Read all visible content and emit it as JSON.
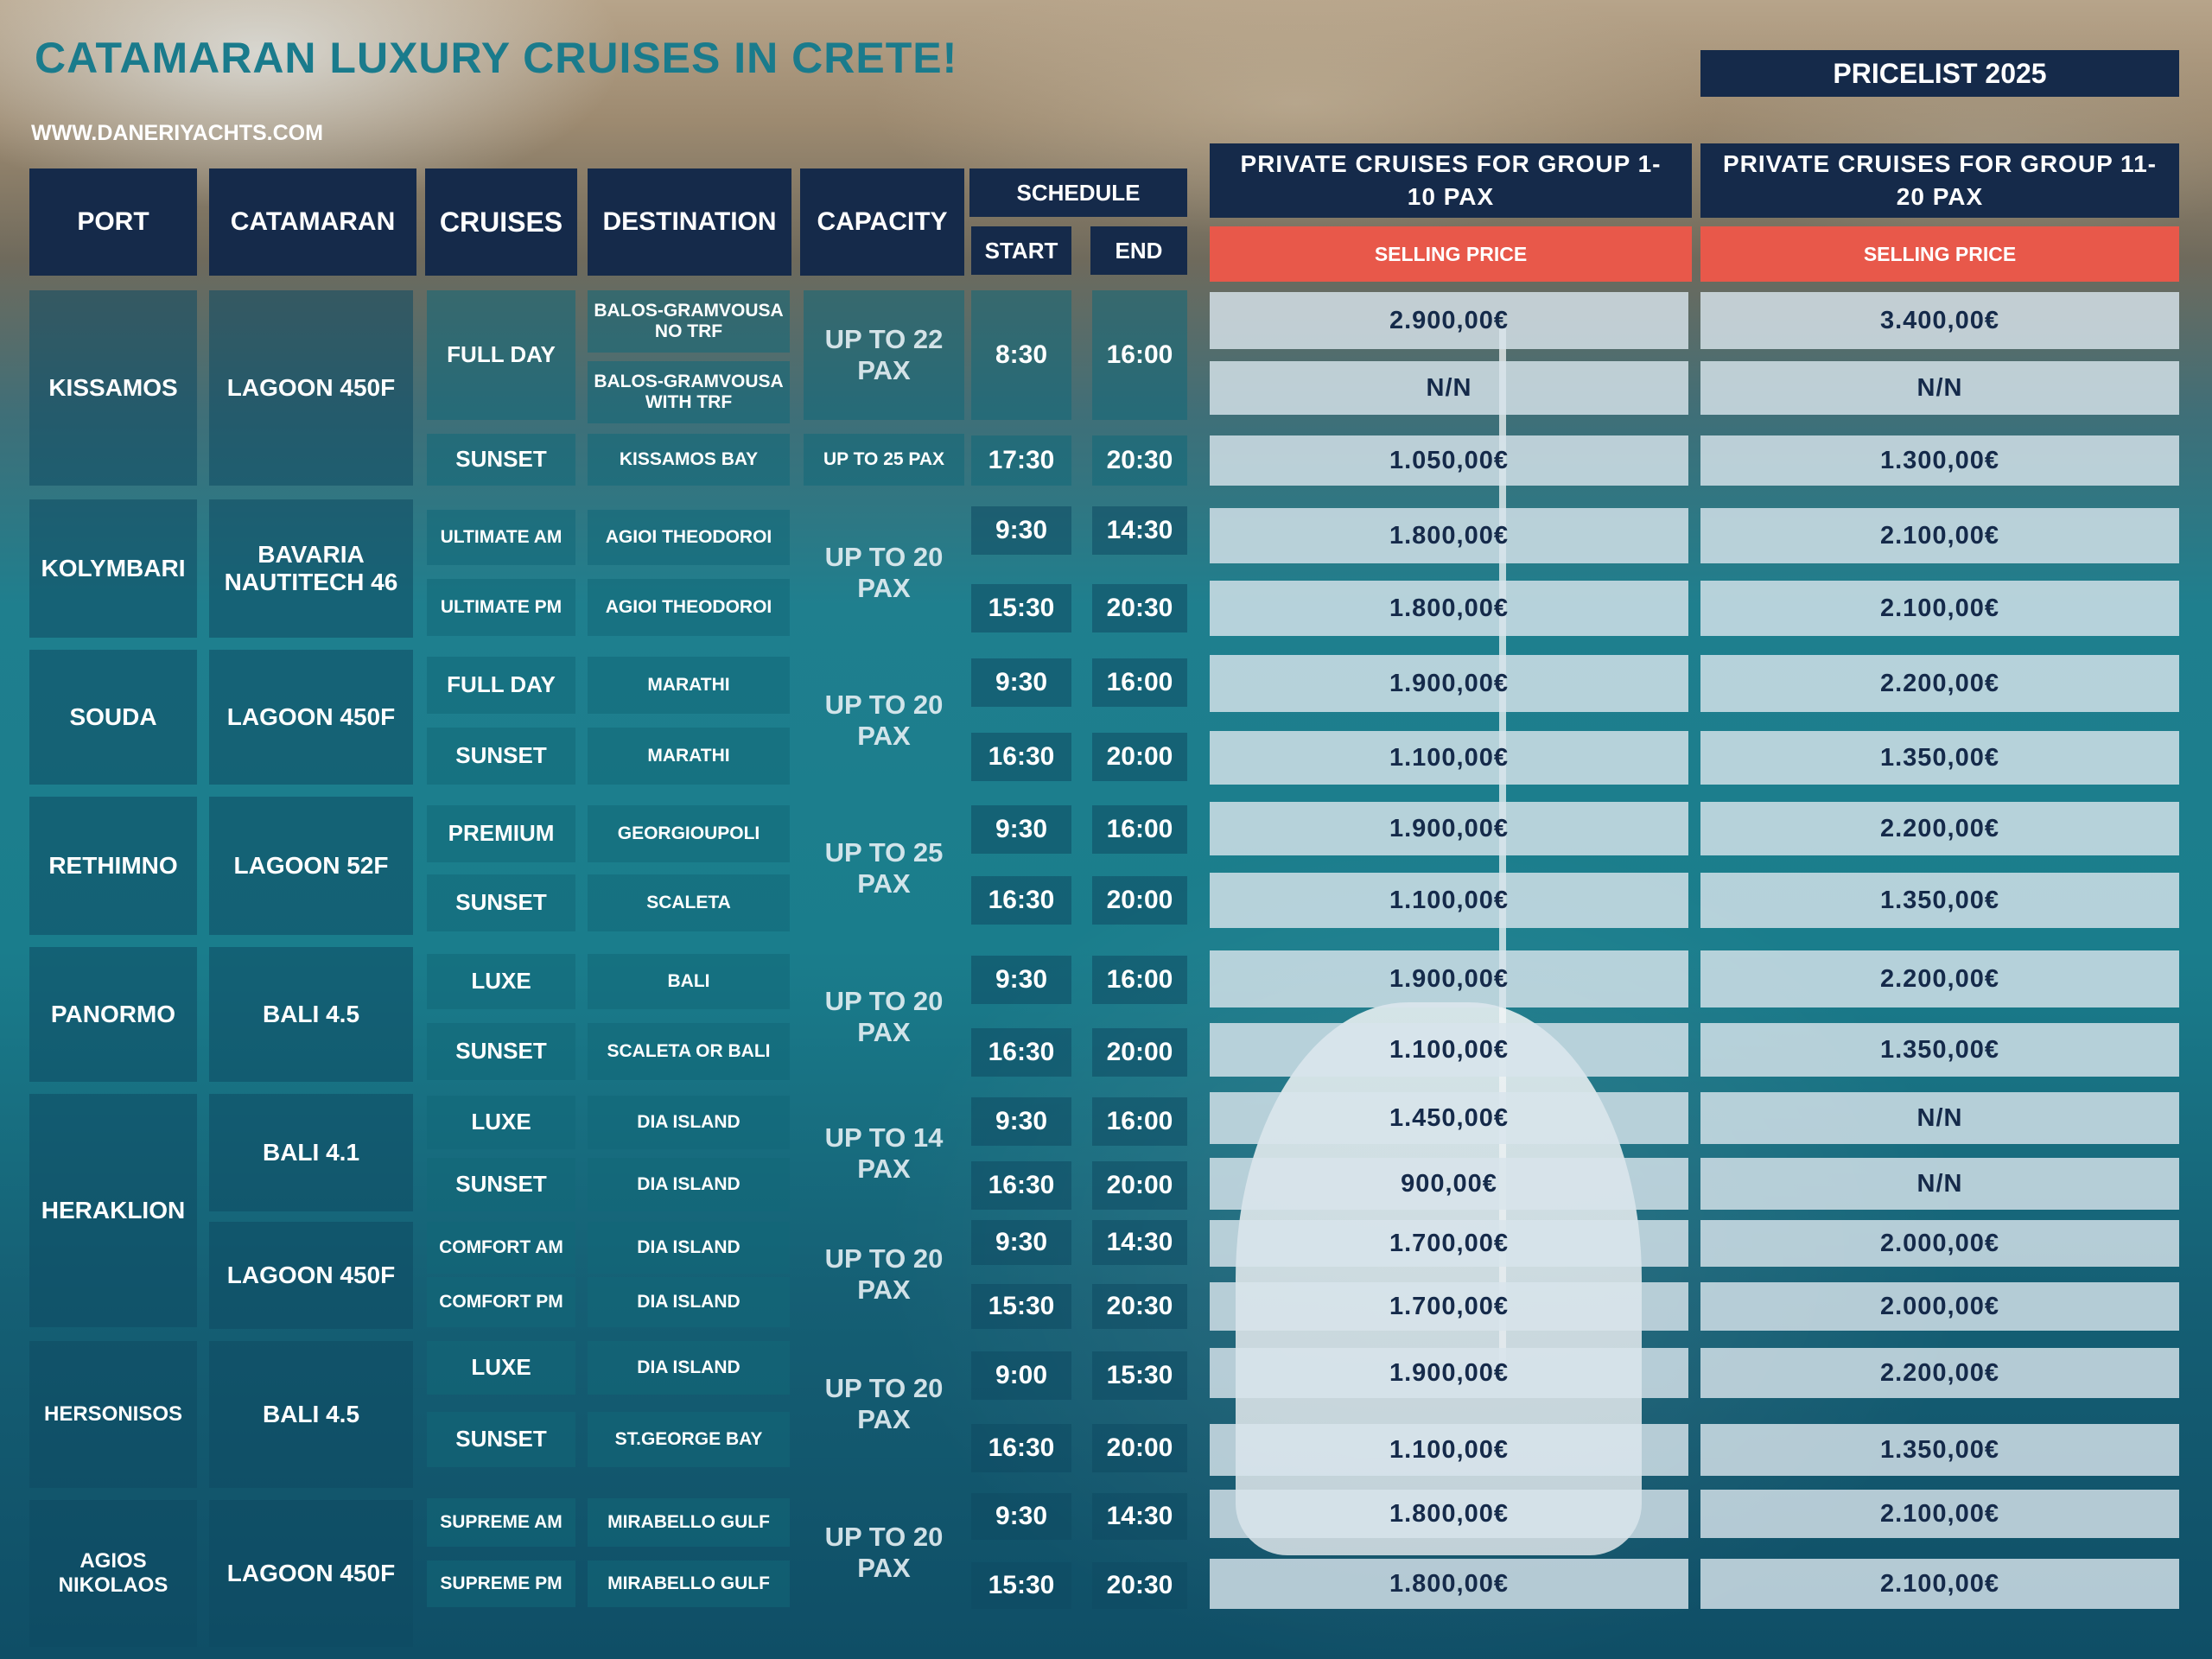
{
  "header": {
    "title": "CATAMARAN LUXURY  CRUISES IN CRETE!",
    "website": "WWW.DANERIYACHTS.COM",
    "pricelist": "PRICELIST 2025"
  },
  "columns": {
    "port": "PORT",
    "catamaran": "CATAMARAN",
    "cruises": "CRUISES",
    "destination": "DESTINATION",
    "capacity": "CAPACITY",
    "schedule": "SCHEDULE",
    "start": "START",
    "end": "END",
    "group1": "PRIVATE CRUISES FOR GROUP 1-10 PAX",
    "group2": "PRIVATE CRUISES FOR GROUP 11-20 PAX",
    "selling1": "SELLING PRICE",
    "selling2": "SELLING PRICE"
  },
  "colors": {
    "navy": "#152a4a",
    "accent_red": "#e8584a",
    "title_teal": "#1a7b8c"
  },
  "table": {
    "ports": [
      "KISSAMOS",
      "KOLYMBARI",
      "SOUDA",
      "RETHIMNO",
      "PANORMO",
      "HERAKLION",
      "HERSONISOS",
      "AGIOS NIKOLAOS"
    ],
    "catamarans": [
      "LAGOON 450F",
      "BAVARIA NAUTITECH 46",
      "LAGOON 450F",
      "LAGOON 52F",
      "BALI 4.5",
      "BALI  4.1",
      "LAGOON 450F",
      "BALI  4.5",
      "LAGOON 450F"
    ],
    "capacities": [
      "UP TO 22 PAX",
      "UP TO 25 PAX",
      "UP TO 20 PAX",
      "UP TO 20 PAX",
      "UP TO 25 PAX",
      "UP TO 20 PAX",
      "UP TO 14 PAX",
      "UP TO 20 PAX",
      "UP TO 20 PAX",
      "UP TO 20 PAX"
    ],
    "rows": [
      {
        "cruise": "FULL DAY",
        "destination": "BALOS-GRAMVOUSA NO TRF",
        "start": "8:30",
        "end": "16:00",
        "price1": "2.900,00€",
        "price2": "3.400,00€"
      },
      {
        "cruise": "",
        "destination": "BALOS-GRAMVOUSA WITH TRF",
        "start": "",
        "end": "",
        "price1": "N/N",
        "price2": "N/N"
      },
      {
        "cruise": "SUNSET",
        "destination": "KISSAMOS BAY",
        "start": "17:30",
        "end": "20:30",
        "price1": "1.050,00€",
        "price2": "1.300,00€"
      },
      {
        "cruise": "ULTIMATE AM",
        "destination": "AGIOI THEODOROI",
        "start": "9:30",
        "end": "14:30",
        "price1": "1.800,00€",
        "price2": "2.100,00€"
      },
      {
        "cruise": "ULTIMATE PM",
        "destination": "AGIOI THEODOROI",
        "start": "15:30",
        "end": "20:30",
        "price1": "1.800,00€",
        "price2": "2.100,00€"
      },
      {
        "cruise": "FULL DAY",
        "destination": "MARATHI",
        "start": "9:30",
        "end": "16:00",
        "price1": "1.900,00€",
        "price2": "2.200,00€"
      },
      {
        "cruise": "SUNSET",
        "destination": "MARATHI",
        "start": "16:30",
        "end": "20:00",
        "price1": "1.100,00€",
        "price2": "1.350,00€"
      },
      {
        "cruise": "PREMIUM",
        "destination": "GEORGIOUPOLI",
        "start": "9:30",
        "end": "16:00",
        "price1": "1.900,00€",
        "price2": "2.200,00€"
      },
      {
        "cruise": "SUNSET",
        "destination": "SCALETA",
        "start": "16:30",
        "end": "20:00",
        "price1": "1.100,00€",
        "price2": "1.350,00€"
      },
      {
        "cruise": "LUXE",
        "destination": "BALI",
        "start": "9:30",
        "end": "16:00",
        "price1": "1.900,00€",
        "price2": "2.200,00€"
      },
      {
        "cruise": "SUNSET",
        "destination": "SCALETA OR BALI",
        "start": "16:30",
        "end": "20:00",
        "price1": "1.100,00€",
        "price2": "1.350,00€"
      },
      {
        "cruise": "LUXE",
        "destination": "DIA ISLAND",
        "start": "9:30",
        "end": "16:00",
        "price1": "1.450,00€",
        "price2": "N/N"
      },
      {
        "cruise": "SUNSET",
        "destination": "DIA ISLAND",
        "start": "16:30",
        "end": "20:00",
        "price1": "900,00€",
        "price2": "N/N"
      },
      {
        "cruise": "COMFORT AM",
        "destination": "DIA ISLAND",
        "start": "9:30",
        "end": "14:30",
        "price1": "1.700,00€",
        "price2": "2.000,00€"
      },
      {
        "cruise": "COMFORT PM",
        "destination": "DIA ISLAND",
        "start": "15:30",
        "end": "20:30",
        "price1": "1.700,00€",
        "price2": "2.000,00€"
      },
      {
        "cruise": "LUXE",
        "destination": "DIA ISLAND",
        "start": "9:00",
        "end": "15:30",
        "price1": "1.900,00€",
        "price2": "2.200,00€"
      },
      {
        "cruise": "SUNSET",
        "destination": "ST.GEORGE BAY",
        "start": "16:30",
        "end": "20:00",
        "price1": "1.100,00€",
        "price2": "1.350,00€"
      },
      {
        "cruise": "SUPREME AM",
        "destination": "MIRABELLO GULF",
        "start": "9:30",
        "end": "14:30",
        "price1": "1.800,00€",
        "price2": "2.100,00€"
      },
      {
        "cruise": "SUPREME PM",
        "destination": "MIRABELLO GULF",
        "start": "15:30",
        "end": "20:30",
        "price1": "1.800,00€",
        "price2": "2.100,00€"
      }
    ]
  }
}
